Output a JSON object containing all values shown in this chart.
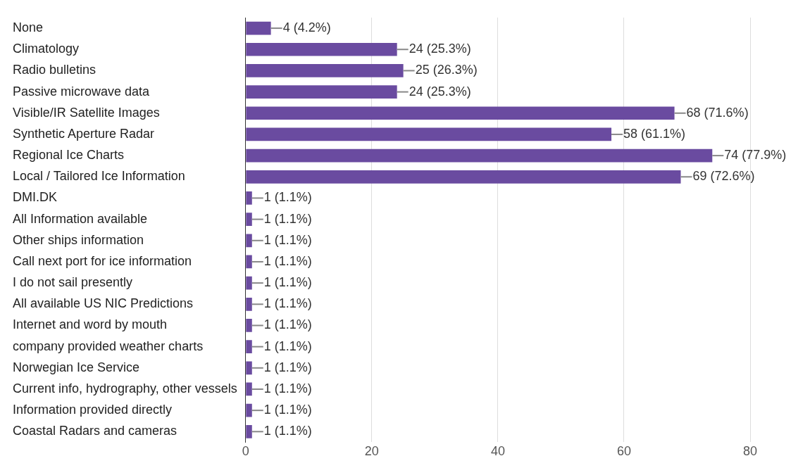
{
  "chart_data": {
    "type": "bar",
    "orientation": "horizontal",
    "categories": [
      "None",
      "Climatology",
      "Radio bulletins",
      "Passive microwave data",
      "Visible/IR Satellite Images",
      "Synthetic Aperture Radar",
      "Regional Ice Charts",
      "Local / Tailored Ice Information",
      "DMI.DK",
      "All Information available",
      "Other ships information",
      "Call next port for ice information",
      "I do not sail presently",
      "All available US NIC Predictions",
      "Internet and word by mouth",
      "company provided weather charts",
      "Norwegian Ice Service",
      "Current info, hydrography, other vessels",
      "Information provided directly",
      "Coastal Radars and cameras"
    ],
    "values": [
      4,
      24,
      25,
      24,
      68,
      58,
      74,
      69,
      1,
      1,
      1,
      1,
      1,
      1,
      1,
      1,
      1,
      1,
      1,
      1
    ],
    "value_labels": [
      "4 (4.2%)",
      "24 (25.3%)",
      "25 (26.3%)",
      "24 (25.3%)",
      "68 (71.6%)",
      "58 (61.1%)",
      "74 (77.9%)",
      "69 (72.6%)",
      "1 (1.1%)",
      "1 (1.1%)",
      "1 (1.1%)",
      "1 (1.1%)",
      "1 (1.1%)",
      "1 (1.1%)",
      "1 (1.1%)",
      "1 (1.1%)",
      "1 (1.1%)",
      "1 (1.1%)",
      "1 (1.1%)",
      "1 (1.1%)"
    ],
    "color": "#6a4ba0",
    "xlim": [
      0,
      80
    ],
    "xticks": [
      0,
      20,
      40,
      60,
      80
    ],
    "grid": "x",
    "legend": false
  }
}
